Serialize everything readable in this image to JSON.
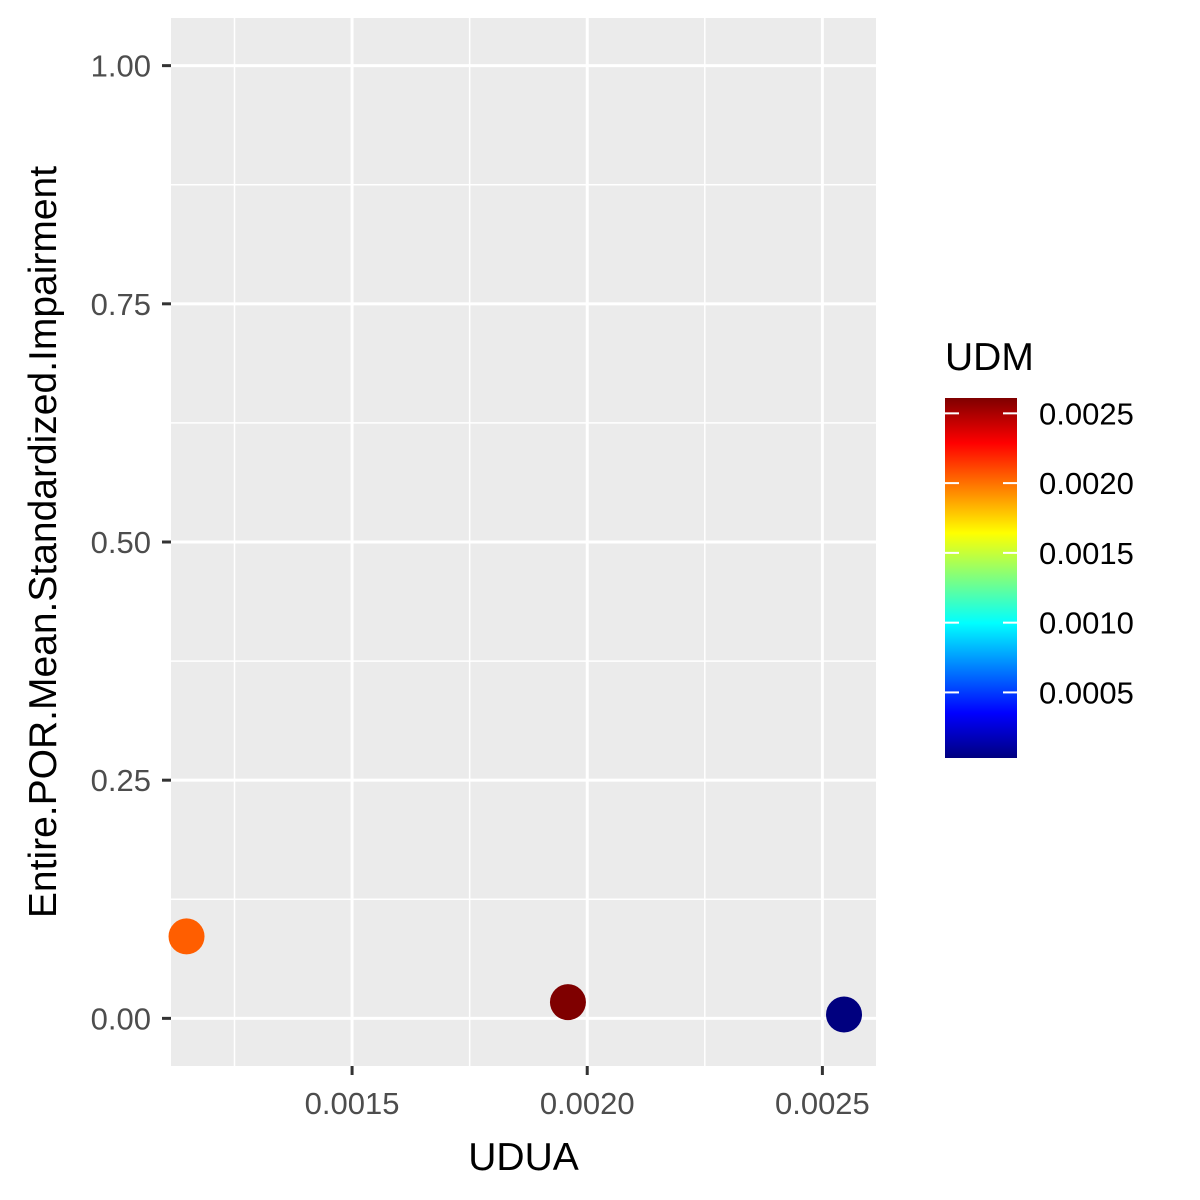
{
  "chart_data": {
    "type": "scatter",
    "xlabel": "UDUA",
    "ylabel": "Entire.POR.Mean.Standardized.Impairment",
    "xlim": [
      0.001115,
      0.002614
    ],
    "ylim": [
      -0.05,
      1.05
    ],
    "x_ticks": [
      0.0015,
      0.002,
      0.0025
    ],
    "x_tick_labels": [
      "0.0015",
      "0.0020",
      "0.0025"
    ],
    "x_minor_ticks": [
      0.00125,
      0.00175,
      0.00225
    ],
    "y_ticks": [
      0,
      0.25,
      0.5,
      0.75,
      1
    ],
    "y_tick_labels": [
      "0.00",
      "0.25",
      "0.50",
      "0.75",
      "1.00"
    ],
    "y_minor_ticks": [
      0.125,
      0.375,
      0.625,
      0.875
    ],
    "grid": true,
    "points": [
      {
        "x": 0.001148,
        "y": 0.086,
        "color_value": 0.00205
      },
      {
        "x": 0.001959,
        "y": 0.017,
        "color_value": 0.00261
      },
      {
        "x": 0.002546,
        "y": 0.004,
        "color_value": 3e-05
      }
    ],
    "colorbar": {
      "title": "UDM",
      "min": 3e-05,
      "max": 0.00261,
      "ticks": [
        0.0005,
        0.001,
        0.0015,
        0.002,
        0.0025
      ],
      "tick_labels": [
        "0.0005",
        "0.0010",
        "0.0015",
        "0.0020",
        "0.0025"
      ],
      "colors": [
        "#00007F",
        "#0000FF",
        "#007FFF",
        "#00FFFF",
        "#7FFF7F",
        "#FFFF00",
        "#FF7F00",
        "#FF0000",
        "#7F0000"
      ]
    },
    "legend_position": "right",
    "panel_background": "#EBEBEB",
    "grid_color": "#FFFFFF"
  }
}
